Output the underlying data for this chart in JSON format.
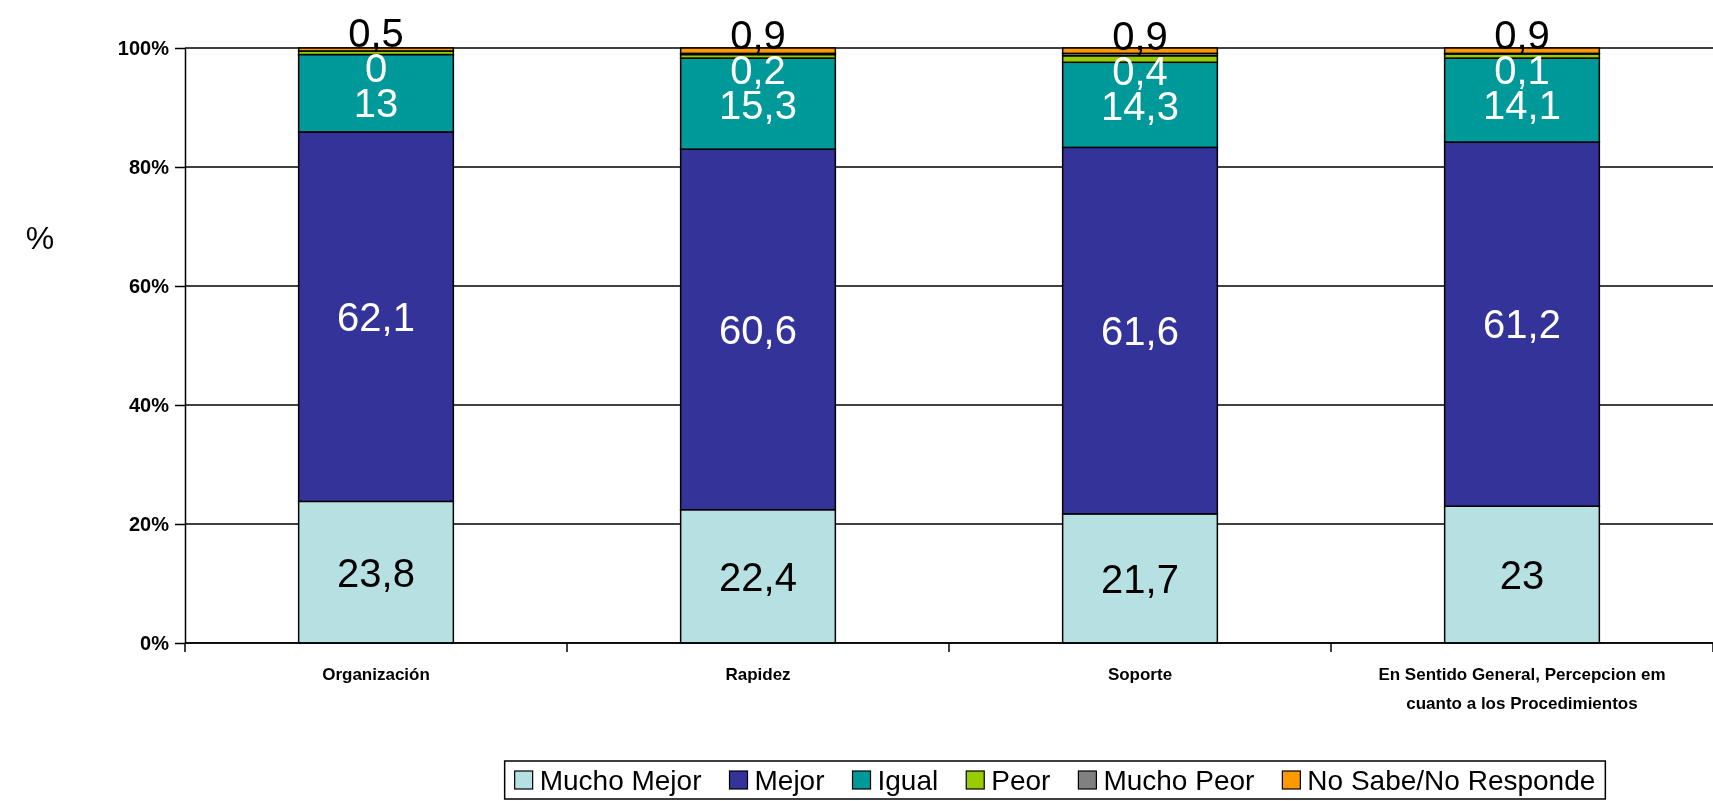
{
  "chart_data": {
    "type": "bar",
    "stacked": true,
    "categories": [
      "Organización",
      "Rapidez",
      "Soporte",
      "En Sentido General, Percepcion em cuanto a los Procedimientos"
    ],
    "ylabel": "%",
    "ylim": [
      0,
      100
    ],
    "yticks": [
      {
        "value": 0,
        "label": "0%"
      },
      {
        "value": 20,
        "label": "20%"
      },
      {
        "value": 40,
        "label": "40%"
      },
      {
        "value": 60,
        "label": "60%"
      },
      {
        "value": 80,
        "label": "80%"
      },
      {
        "value": 100,
        "label": "100%"
      }
    ],
    "grid": "y",
    "legend": "bottom",
    "series": [
      {
        "name": "Mucho Mejor",
        "color": "#b7e0e3",
        "values": [
          23.8,
          22.4,
          21.7,
          23
        ],
        "value_labels": [
          "23,8",
          "22,4",
          "21,7",
          "23"
        ]
      },
      {
        "name": "Mejor",
        "color": "#333399",
        "values": [
          62.1,
          60.6,
          61.6,
          61.2
        ],
        "value_labels": [
          "62,1",
          "60,6",
          "61,6",
          "61,2"
        ]
      },
      {
        "name": "Igual",
        "color": "#009999",
        "values": [
          13,
          15.3,
          14.3,
          14.1
        ],
        "value_labels": [
          "13",
          "15,3",
          "14,3",
          "14,1"
        ]
      },
      {
        "name": "Peor",
        "color": "#99cc00",
        "values": [
          0.6,
          0.6,
          1.1,
          0.7
        ]
      },
      {
        "name": "Mucho Peor",
        "color": "#808080",
        "values": [
          0,
          0.2,
          0.4,
          0.1
        ],
        "value_labels": [
          "0",
          "0,2",
          "0,4",
          "0,1"
        ]
      },
      {
        "name": "No Sabe/No Responde",
        "color": "#ff9900",
        "values": [
          0.5,
          0.9,
          0.9,
          0.9
        ],
        "value_labels": [
          "0,5",
          "0,9",
          "0,9",
          "0,9"
        ]
      }
    ]
  }
}
